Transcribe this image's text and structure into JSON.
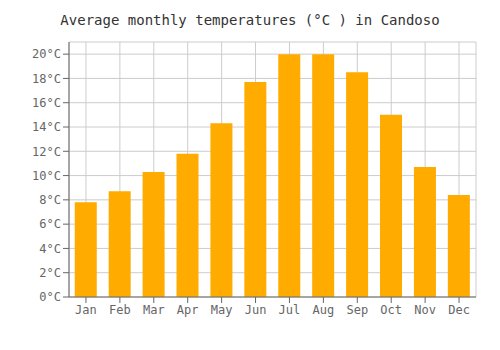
{
  "chart_data": {
    "type": "bar",
    "title": "Average monthly temperatures (°C ) in Candoso",
    "categories": [
      "Jan",
      "Feb",
      "Mar",
      "Apr",
      "May",
      "Jun",
      "Jul",
      "Aug",
      "Sep",
      "Oct",
      "Nov",
      "Dec"
    ],
    "values": [
      7.8,
      8.7,
      10.3,
      11.8,
      14.3,
      17.7,
      20.0,
      20.0,
      18.5,
      15.0,
      10.7,
      8.4
    ],
    "color": "#FFAB00",
    "ylim": [
      0,
      21
    ],
    "yticks": [
      {
        "value": 0,
        "label": "0°C"
      },
      {
        "value": 2,
        "label": "2°C"
      },
      {
        "value": 4,
        "label": "4°C"
      },
      {
        "value": 6,
        "label": "6°C"
      },
      {
        "value": 8,
        "label": "8°C"
      },
      {
        "value": 10,
        "label": "10°C"
      },
      {
        "value": 12,
        "label": "12°C"
      },
      {
        "value": 14,
        "label": "14°C"
      },
      {
        "value": 16,
        "label": "16°C"
      },
      {
        "value": 18,
        "label": "18°C"
      },
      {
        "value": 20,
        "label": "20°C"
      }
    ],
    "grid": true
  }
}
